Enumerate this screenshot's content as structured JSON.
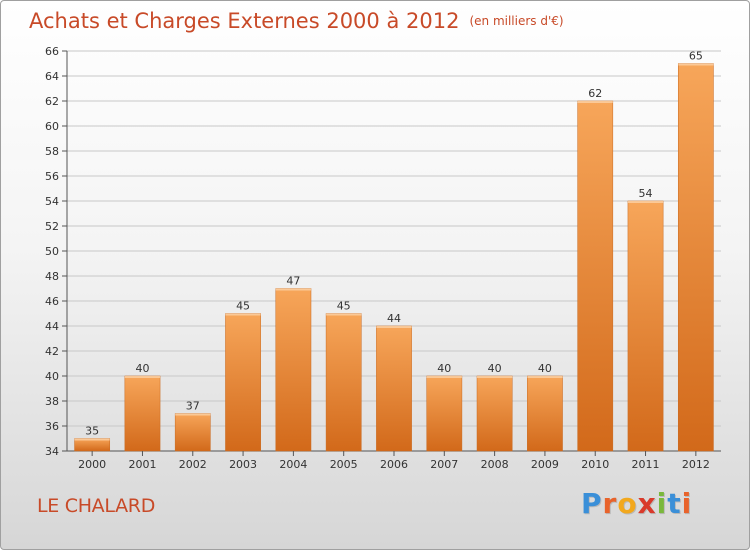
{
  "header": {
    "title": "Achats et Charges Externes 2000 à 2012",
    "subtitle": "(en milliers d'€)"
  },
  "footer": {
    "commune": "LE CHALARD",
    "logo_letters": [
      "P",
      "r",
      "o",
      "x",
      "i",
      "t",
      "i"
    ],
    "logo_colors": [
      "#3a8fd8",
      "#e8632b",
      "#f2a81d",
      "#d93a2b",
      "#7ab83c",
      "#3a8fd8",
      "#e8632b"
    ]
  },
  "colors": {
    "bar_top": "#f7a65a",
    "bar_bottom": "#d2691a",
    "grid": "#c8c8c8",
    "title": "#c84a28"
  },
  "chart_data": {
    "type": "bar",
    "title": "Achats et Charges Externes 2000 à 2012",
    "subtitle": "(en milliers d'€)",
    "xlabel": "",
    "ylabel": "",
    "categories": [
      "2000",
      "2001",
      "2002",
      "2003",
      "2004",
      "2005",
      "2006",
      "2007",
      "2008",
      "2009",
      "2010",
      "2011",
      "2012"
    ],
    "values": [
      35,
      40,
      37,
      45,
      47,
      45,
      44,
      40,
      40,
      40,
      62,
      54,
      65
    ],
    "ylim": [
      34,
      66
    ],
    "yticks": [
      34,
      36,
      38,
      40,
      42,
      44,
      46,
      48,
      50,
      52,
      54,
      56,
      58,
      60,
      62,
      64,
      66
    ],
    "grid": true,
    "data_labels": true
  }
}
